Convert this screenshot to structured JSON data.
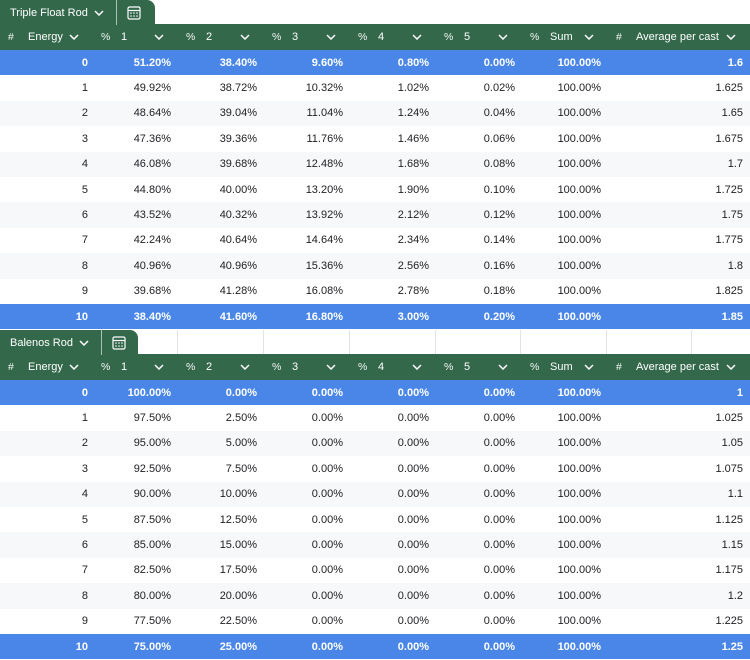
{
  "colors": {
    "header_bg": "#33684a",
    "highlight_row": "#4a86e8",
    "alt_row": "#f7f8f9"
  },
  "columns": [
    {
      "type": "#",
      "label": "Energy"
    },
    {
      "type": "%",
      "label": "1"
    },
    {
      "type": "%",
      "label": "2"
    },
    {
      "type": "%",
      "label": "3"
    },
    {
      "type": "%",
      "label": "4"
    },
    {
      "type": "%",
      "label": "5"
    },
    {
      "type": "%",
      "label": "Sum"
    },
    {
      "type": "#",
      "label": "Average per cast"
    }
  ],
  "tables": [
    {
      "name": "Triple Float Rod",
      "rows": [
        [
          "0",
          "51.20%",
          "38.40%",
          "9.60%",
          "0.80%",
          "0.00%",
          "100.00%",
          "1.6"
        ],
        [
          "1",
          "49.92%",
          "38.72%",
          "10.32%",
          "1.02%",
          "0.02%",
          "100.00%",
          "1.625"
        ],
        [
          "2",
          "48.64%",
          "39.04%",
          "11.04%",
          "1.24%",
          "0.04%",
          "100.00%",
          "1.65"
        ],
        [
          "3",
          "47.36%",
          "39.36%",
          "11.76%",
          "1.46%",
          "0.06%",
          "100.00%",
          "1.675"
        ],
        [
          "4",
          "46.08%",
          "39.68%",
          "12.48%",
          "1.68%",
          "0.08%",
          "100.00%",
          "1.7"
        ],
        [
          "5",
          "44.80%",
          "40.00%",
          "13.20%",
          "1.90%",
          "0.10%",
          "100.00%",
          "1.725"
        ],
        [
          "6",
          "43.52%",
          "40.32%",
          "13.92%",
          "2.12%",
          "0.12%",
          "100.00%",
          "1.75"
        ],
        [
          "7",
          "42.24%",
          "40.64%",
          "14.64%",
          "2.34%",
          "0.14%",
          "100.00%",
          "1.775"
        ],
        [
          "8",
          "40.96%",
          "40.96%",
          "15.36%",
          "2.56%",
          "0.16%",
          "100.00%",
          "1.8"
        ],
        [
          "9",
          "39.68%",
          "41.28%",
          "16.08%",
          "2.78%",
          "0.18%",
          "100.00%",
          "1.825"
        ],
        [
          "10",
          "38.40%",
          "41.60%",
          "16.80%",
          "3.00%",
          "0.20%",
          "100.00%",
          "1.85"
        ]
      ]
    },
    {
      "name": "Balenos Rod",
      "rows": [
        [
          "0",
          "100.00%",
          "0.00%",
          "0.00%",
          "0.00%",
          "0.00%",
          "100.00%",
          "1"
        ],
        [
          "1",
          "97.50%",
          "2.50%",
          "0.00%",
          "0.00%",
          "0.00%",
          "100.00%",
          "1.025"
        ],
        [
          "2",
          "95.00%",
          "5.00%",
          "0.00%",
          "0.00%",
          "0.00%",
          "100.00%",
          "1.05"
        ],
        [
          "3",
          "92.50%",
          "7.50%",
          "0.00%",
          "0.00%",
          "0.00%",
          "100.00%",
          "1.075"
        ],
        [
          "4",
          "90.00%",
          "10.00%",
          "0.00%",
          "0.00%",
          "0.00%",
          "100.00%",
          "1.1"
        ],
        [
          "5",
          "87.50%",
          "12.50%",
          "0.00%",
          "0.00%",
          "0.00%",
          "100.00%",
          "1.125"
        ],
        [
          "6",
          "85.00%",
          "15.00%",
          "0.00%",
          "0.00%",
          "0.00%",
          "100.00%",
          "1.15"
        ],
        [
          "7",
          "82.50%",
          "17.50%",
          "0.00%",
          "0.00%",
          "0.00%",
          "100.00%",
          "1.175"
        ],
        [
          "8",
          "80.00%",
          "20.00%",
          "0.00%",
          "0.00%",
          "0.00%",
          "100.00%",
          "1.2"
        ],
        [
          "9",
          "77.50%",
          "22.50%",
          "0.00%",
          "0.00%",
          "0.00%",
          "100.00%",
          "1.225"
        ],
        [
          "10",
          "75.00%",
          "25.00%",
          "0.00%",
          "0.00%",
          "0.00%",
          "100.00%",
          "1.25"
        ]
      ]
    }
  ]
}
